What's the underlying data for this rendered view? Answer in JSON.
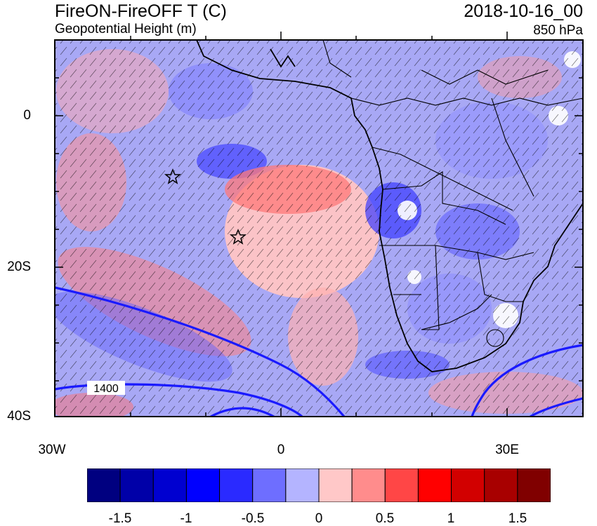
{
  "header": {
    "title": "FireON-FireOFF T (C)",
    "subtitle": "Geopotential Height (m)",
    "date": "2018-10-16_00",
    "level": "850 hPa"
  },
  "map": {
    "lat_labels": [
      "0",
      "20S",
      "40S"
    ],
    "lon_labels": [
      "30W",
      "0",
      "30E"
    ],
    "contour_label": "1400",
    "contour_color": "#1a1aff",
    "markers": [
      "star-marker",
      "star-marker"
    ]
  },
  "colorbar": {
    "colors": [
      "#000080",
      "#0000a8",
      "#0000d0",
      "#0000ff",
      "#2a2aff",
      "#6e6eff",
      "#b4b4ff",
      "#ffc8c8",
      "#ff8c8c",
      "#ff4646",
      "#ff0000",
      "#d20000",
      "#a80000",
      "#800000"
    ],
    "labels": [
      "-1.5",
      "-1",
      "-0.5",
      "0",
      "0.5",
      "1",
      "1.5"
    ]
  }
}
